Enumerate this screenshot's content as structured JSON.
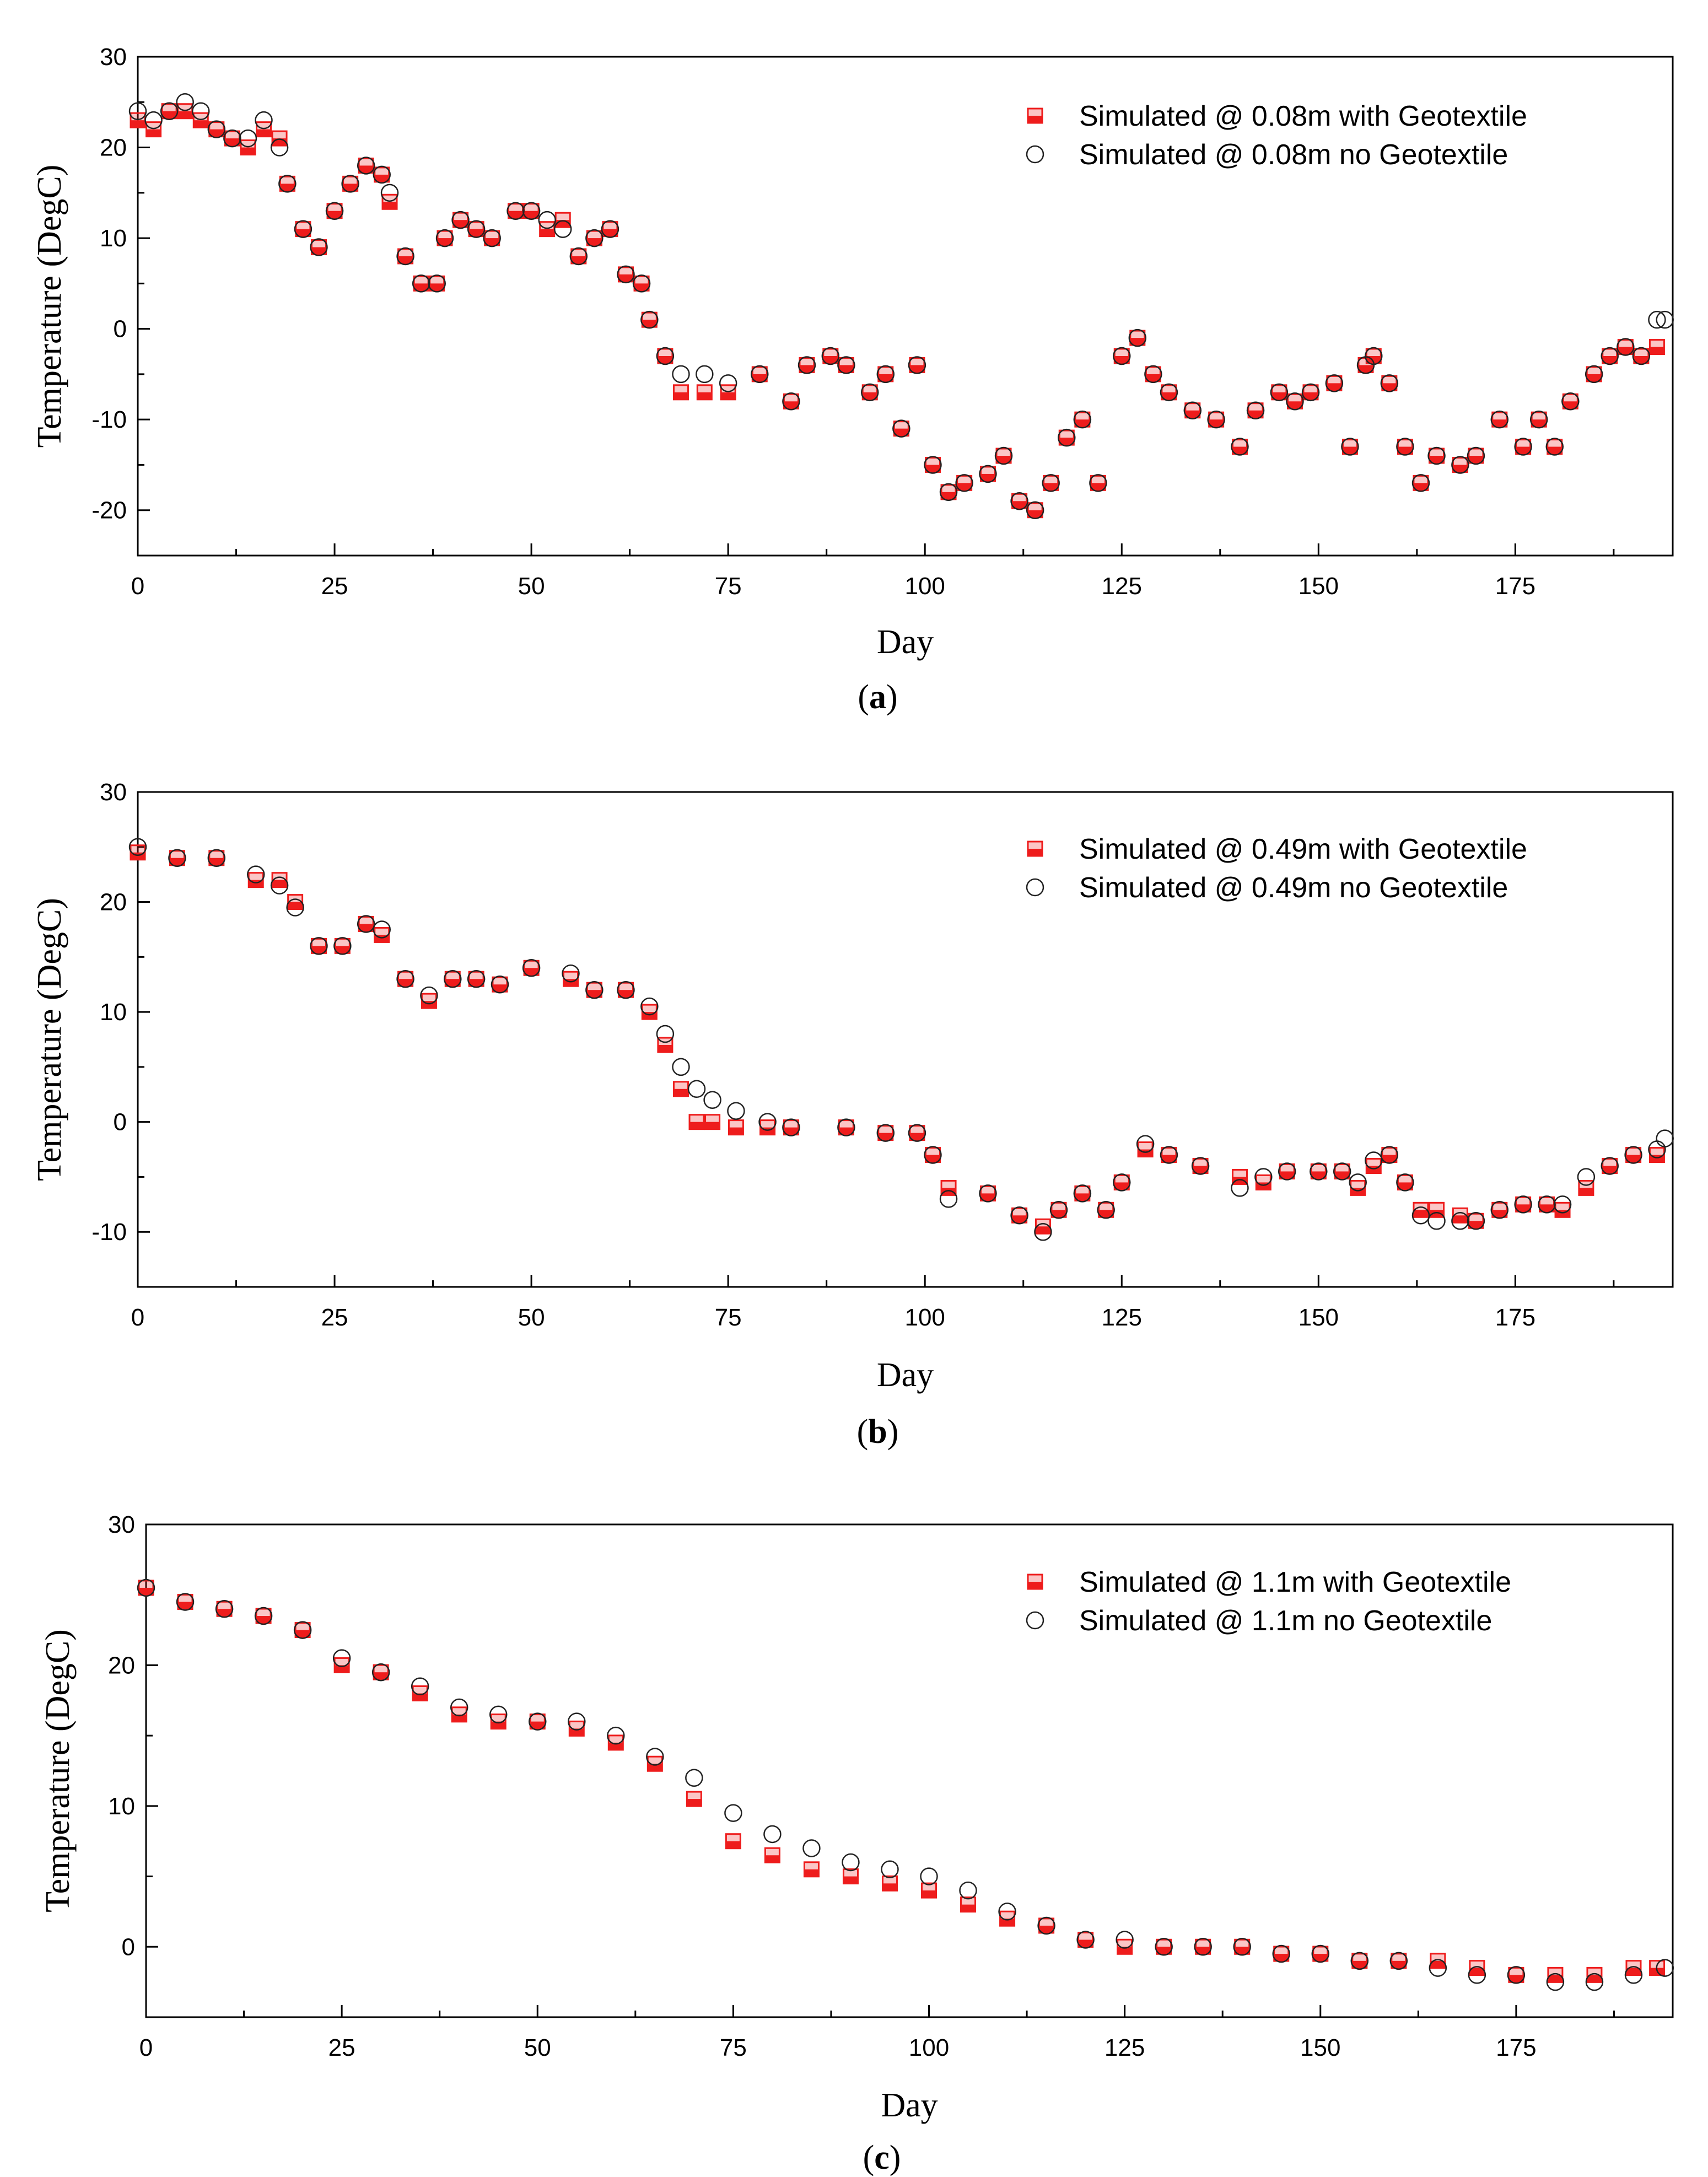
{
  "colors": {
    "with_geotextile": "#ee1c1c",
    "no_geotextile": "#222222"
  },
  "chart_data": [
    {
      "type": "scatter",
      "panel_label": "a",
      "xlabel": "Day",
      "ylabel": "Temperature (DegC)",
      "xlim": [
        0,
        195
      ],
      "ylim": [
        -25,
        30
      ],
      "xticks": [
        0,
        25,
        50,
        75,
        100,
        125,
        150,
        175
      ],
      "yticks": [
        30,
        20,
        10,
        0,
        -10,
        -20
      ],
      "legend_position": "top-right",
      "series": [
        {
          "name": "Simulated @ 0.08m with Geotextile",
          "marker": "half-filled-square",
          "x": [
            0,
            2,
            4,
            6,
            8,
            10,
            12,
            14,
            16,
            18,
            19,
            21,
            23,
            25,
            27,
            29,
            31,
            32,
            34,
            36,
            38,
            39,
            41,
            43,
            45,
            48,
            50,
            52,
            54,
            56,
            58,
            60,
            62,
            64,
            65,
            67,
            69,
            72,
            75,
            79,
            83,
            85,
            88,
            90,
            93,
            95,
            97,
            99,
            101,
            103,
            105,
            108,
            110,
            112,
            114,
            116,
            118,
            120,
            122,
            125,
            127,
            129,
            131,
            134,
            137,
            140,
            142,
            145,
            147,
            149,
            152,
            154,
            156,
            157,
            159,
            161,
            163,
            165,
            168,
            170,
            173,
            176,
            178,
            180,
            182,
            185,
            187,
            189,
            191,
            193
          ],
          "y": [
            23,
            22,
            24,
            24,
            23,
            22,
            21,
            20,
            22,
            21,
            16,
            11,
            9,
            13,
            16,
            18,
            17,
            14,
            8,
            5,
            5,
            10,
            12,
            11,
            10,
            13,
            13,
            11,
            12,
            8,
            10,
            11,
            6,
            5,
            1,
            -3,
            -7,
            -7,
            -7,
            -5,
            -8,
            -4,
            -3,
            -4,
            -7,
            -5,
            -11,
            -4,
            -15,
            -18,
            -17,
            -16,
            -14,
            -19,
            -20,
            -17,
            -12,
            -10,
            -17,
            -3,
            -1,
            -5,
            -7,
            -9,
            -10,
            -13,
            -9,
            -7,
            -8,
            -7,
            -6,
            -13,
            -4,
            -3,
            -6,
            -13,
            -17,
            -14,
            -15,
            -14,
            -10,
            -13,
            -10,
            -13,
            -8,
            -5,
            -3,
            -2,
            -3,
            -2
          ]
        },
        {
          "name": "Simulated @ 0.08m no Geotextile",
          "marker": "open-circle",
          "x": [
            0,
            2,
            4,
            6,
            8,
            10,
            12,
            14,
            16,
            18,
            19,
            21,
            23,
            25,
            27,
            29,
            31,
            32,
            34,
            36,
            38,
            39,
            41,
            43,
            45,
            48,
            50,
            52,
            54,
            56,
            58,
            60,
            62,
            64,
            65,
            67,
            69,
            72,
            75,
            79,
            83,
            85,
            88,
            90,
            93,
            95,
            97,
            99,
            101,
            103,
            105,
            108,
            110,
            112,
            114,
            116,
            118,
            120,
            122,
            125,
            127,
            129,
            131,
            134,
            137,
            140,
            142,
            145,
            147,
            149,
            152,
            154,
            156,
            157,
            159,
            161,
            163,
            165,
            168,
            170,
            173,
            176,
            178,
            180,
            182,
            185,
            187,
            189,
            191,
            193,
            194
          ],
          "y": [
            24,
            23,
            24,
            25,
            24,
            22,
            21,
            21,
            23,
            20,
            16,
            11,
            9,
            13,
            16,
            18,
            17,
            15,
            8,
            5,
            5,
            10,
            12,
            11,
            10,
            13,
            13,
            12,
            11,
            8,
            10,
            11,
            6,
            5,
            1,
            -3,
            -5,
            -5,
            -6,
            -5,
            -8,
            -4,
            -3,
            -4,
            -7,
            -5,
            -11,
            -4,
            -15,
            -18,
            -17,
            -16,
            -14,
            -19,
            -20,
            -17,
            -12,
            -10,
            -17,
            -3,
            -1,
            -5,
            -7,
            -9,
            -10,
            -13,
            -9,
            -7,
            -8,
            -7,
            -6,
            -13,
            -4,
            -3,
            -6,
            -13,
            -17,
            -14,
            -15,
            -14,
            -10,
            -13,
            -10,
            -13,
            -8,
            -5,
            -3,
            -2,
            -3,
            1,
            1
          ]
        }
      ]
    },
    {
      "type": "scatter",
      "panel_label": "b",
      "xlabel": "Day",
      "ylabel": "Temperature (DegC)",
      "xlim": [
        0,
        195
      ],
      "ylim": [
        -15,
        30
      ],
      "xticks": [
        0,
        25,
        50,
        75,
        100,
        125,
        150,
        175
      ],
      "yticks": [
        30,
        20,
        10,
        0,
        -10
      ],
      "legend_position": "top-right",
      "series": [
        {
          "name": "Simulated @ 0.49m with Geotextile",
          "marker": "half-filled-square",
          "x": [
            0,
            5,
            10,
            15,
            18,
            20,
            23,
            26,
            29,
            31,
            34,
            37,
            40,
            43,
            46,
            50,
            55,
            58,
            62,
            65,
            67,
            69,
            71,
            73,
            76,
            80,
            83,
            90,
            95,
            99,
            101,
            103,
            108,
            112,
            115,
            117,
            120,
            123,
            125,
            128,
            131,
            135,
            140,
            143,
            146,
            150,
            153,
            155,
            157,
            159,
            161,
            163,
            165,
            168,
            170,
            173,
            176,
            179,
            181,
            184,
            187,
            190,
            193
          ],
          "y": [
            24.5,
            24,
            24,
            22,
            22,
            20,
            16,
            16,
            18,
            17,
            13,
            11,
            13,
            13,
            12.5,
            14,
            13,
            12,
            12,
            10,
            7,
            3,
            0,
            0,
            -0.5,
            -0.5,
            -0.5,
            -0.5,
            -1,
            -1,
            -3,
            -6,
            -6.5,
            -8.5,
            -9.5,
            -8,
            -6.5,
            -8,
            -5.5,
            -2.5,
            -3,
            -4,
            -5,
            -5.5,
            -4.5,
            -4.5,
            -4.5,
            -6,
            -4,
            -3,
            -5.5,
            -8,
            -8,
            -8.5,
            -9,
            -8,
            -7.5,
            -7.5,
            -8,
            -6,
            -4,
            -3,
            -3
          ]
        },
        {
          "name": "Simulated @ 0.49m no Geotextile",
          "marker": "open-circle",
          "x": [
            0,
            5,
            10,
            15,
            18,
            20,
            23,
            26,
            29,
            31,
            34,
            37,
            40,
            43,
            46,
            50,
            55,
            58,
            62,
            65,
            67,
            69,
            71,
            73,
            76,
            80,
            83,
            90,
            95,
            99,
            101,
            103,
            108,
            112,
            115,
            117,
            120,
            123,
            125,
            128,
            131,
            135,
            140,
            143,
            146,
            150,
            153,
            155,
            157,
            159,
            161,
            163,
            165,
            168,
            170,
            173,
            176,
            179,
            181,
            184,
            187,
            190,
            193,
            194
          ],
          "y": [
            25,
            24,
            24,
            22.5,
            21.5,
            19.5,
            16,
            16,
            18,
            17.5,
            13,
            11.5,
            13,
            13,
            12.5,
            14,
            13.5,
            12,
            12,
            10.5,
            8,
            5,
            3,
            2,
            1,
            0,
            -0.5,
            -0.5,
            -1,
            -1,
            -3,
            -7,
            -6.5,
            -8.5,
            -10,
            -8,
            -6.5,
            -8,
            -5.5,
            -2,
            -3,
            -4,
            -6,
            -5,
            -4.5,
            -4.5,
            -4.5,
            -5.5,
            -3.5,
            -3,
            -5.5,
            -8.5,
            -9,
            -9,
            -9,
            -8,
            -7.5,
            -7.5,
            -7.5,
            -5,
            -4,
            -3,
            -2.5,
            -1.5
          ]
        }
      ]
    },
    {
      "type": "scatter",
      "panel_label": "c",
      "xlabel": "Day",
      "ylabel": "Temperature (DegC)",
      "xlim": [
        0,
        195
      ],
      "ylim": [
        -5,
        30
      ],
      "xticks": [
        0,
        25,
        50,
        75,
        100,
        125,
        150,
        175
      ],
      "yticks": [
        30,
        20,
        10,
        0
      ],
      "legend_position": "top-right",
      "series": [
        {
          "name": "Simulated @ 1.1m with Geotextile",
          "marker": "half-filled-square",
          "x": [
            0,
            5,
            10,
            15,
            20,
            25,
            30,
            35,
            40,
            45,
            50,
            55,
            60,
            65,
            70,
            75,
            80,
            85,
            90,
            95,
            100,
            105,
            110,
            115,
            120,
            125,
            130,
            135,
            140,
            145,
            150,
            155,
            160,
            165,
            170,
            175,
            180,
            185,
            190,
            193
          ],
          "y": [
            25.5,
            24.5,
            24,
            23.5,
            22.5,
            20,
            19.5,
            18,
            16.5,
            16,
            16,
            15.5,
            14.5,
            13,
            10.5,
            7.5,
            6.5,
            5.5,
            5,
            4.5,
            4,
            3,
            2,
            1.5,
            0.5,
            0,
            0,
            0,
            0,
            -0.5,
            -0.5,
            -1,
            -1,
            -1,
            -1.5,
            -2,
            -2,
            -2,
            -1.5,
            -1.5
          ]
        },
        {
          "name": "Simulated @ 1.1m no Geotextile",
          "marker": "open-circle",
          "x": [
            0,
            5,
            10,
            15,
            20,
            25,
            30,
            35,
            40,
            45,
            50,
            55,
            60,
            65,
            70,
            75,
            80,
            85,
            90,
            95,
            100,
            105,
            110,
            115,
            120,
            125,
            130,
            135,
            140,
            145,
            150,
            155,
            160,
            165,
            170,
            175,
            180,
            185,
            190,
            194
          ],
          "y": [
            25.5,
            24.5,
            24,
            23.5,
            22.5,
            20.5,
            19.5,
            18.5,
            17,
            16.5,
            16,
            16,
            15,
            13.5,
            12,
            9.5,
            8,
            7,
            6,
            5.5,
            5,
            4,
            2.5,
            1.5,
            0.5,
            0.5,
            0,
            0,
            0,
            -0.5,
            -0.5,
            -1,
            -1,
            -1.5,
            -2,
            -2,
            -2.5,
            -2.5,
            -2,
            -1.5
          ]
        }
      ]
    }
  ]
}
